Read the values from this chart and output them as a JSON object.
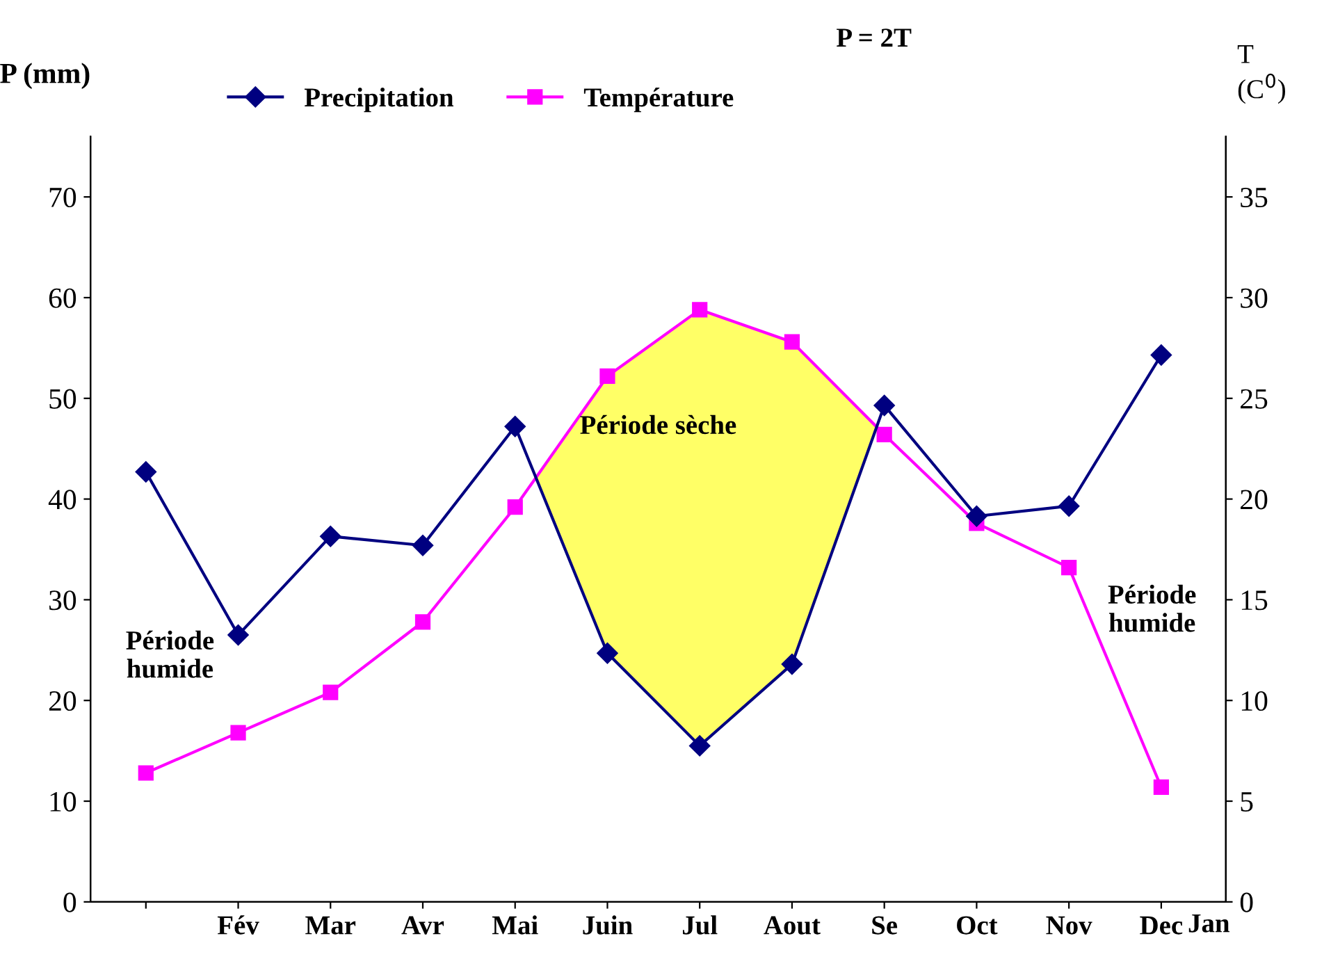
{
  "chart_data": {
    "type": "line",
    "categories": [
      null,
      "Fév",
      "Mar",
      "Avr",
      "Mai",
      "Juin",
      "Jul",
      "Aout",
      "Se",
      "Oct",
      "Nov",
      "Dec"
    ],
    "series": [
      {
        "name": "Precipitation",
        "color": "#000080",
        "marker": "diamond",
        "values": [
          42.7,
          26.5,
          36.3,
          35.4,
          47.2,
          24.7,
          15.5,
          23.6,
          49.3,
          38.3,
          39.3,
          54.3
        ]
      },
      {
        "name": "Température",
        "color": "#ff00ff",
        "marker": "square",
        "axis": "y2",
        "values": [
          6.4,
          8.4,
          10.4,
          13.9,
          19.6,
          26.1,
          29.4,
          27.8,
          23.2,
          18.8,
          16.6,
          5.7
        ]
      }
    ],
    "ylabel": "P (mm)",
    "y2label": "T\n(C$^{0}$)",
    "ylim": [
      0,
      76
    ],
    "yticks": [
      0,
      10,
      20,
      30,
      40,
      50,
      60,
      70
    ],
    "y2lim": [
      0,
      38
    ],
    "y2ticks": [
      0,
      5,
      10,
      15,
      20,
      25,
      30,
      35
    ],
    "annotations": [
      "P = 2T",
      "Période sèche",
      "Période\nhumide",
      "Période\nhumide",
      "Jan"
    ],
    "legend": "top left",
    "grid": false
  }
}
